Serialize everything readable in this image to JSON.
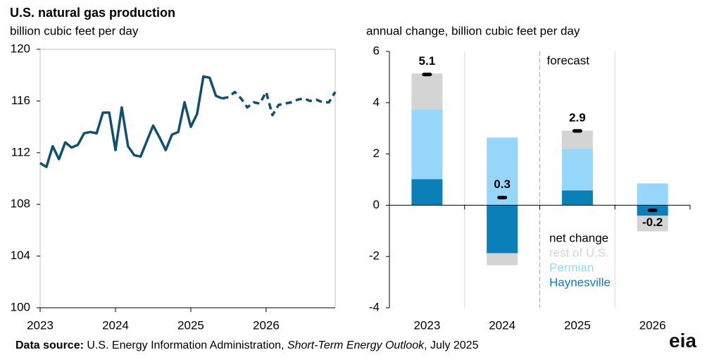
{
  "chart_data": [
    {
      "type": "line",
      "title": "U.S. natural gas production",
      "subtitle": "billion cubic feet per day",
      "categories": [
        "2023",
        null,
        null,
        null,
        null,
        null,
        null,
        null,
        null,
        null,
        null,
        null,
        "2024",
        null,
        null,
        null,
        null,
        null,
        null,
        null,
        null,
        null,
        null,
        null,
        "2025",
        null,
        null,
        null,
        null,
        null,
        null,
        null,
        null,
        null,
        null,
        null,
        "2026",
        null,
        null,
        null,
        null,
        null,
        null,
        null,
        null,
        null,
        null,
        null
      ],
      "series": [
        {
          "color": "#10506e",
          "dashed": false,
          "values": [
            111.2,
            110.9,
            112.5,
            111.5,
            112.8,
            112.4,
            112.6,
            113.5,
            113.6,
            113.5,
            115.1,
            115.1,
            112.2,
            115.5,
            112.5,
            111.8,
            111.7,
            112.9,
            114.1,
            113.2,
            112.2,
            113.4,
            113.6,
            115.9,
            114.0,
            115.0,
            117.9,
            117.8,
            116.4,
            116.2,
            null,
            null,
            null,
            null,
            null,
            null,
            null,
            null,
            null,
            null,
            null,
            null,
            null,
            null,
            null,
            null,
            null,
            null
          ]
        },
        {
          "color": "#10506e",
          "dashed": true,
          "values": [
            null,
            null,
            null,
            null,
            null,
            null,
            null,
            null,
            null,
            null,
            null,
            null,
            null,
            null,
            null,
            null,
            null,
            null,
            null,
            null,
            null,
            null,
            null,
            null,
            null,
            null,
            null,
            null,
            null,
            116.2,
            116.3,
            116.7,
            116.2,
            115.5,
            115.9,
            115.8,
            116.7,
            114.9,
            115.7,
            115.8,
            115.9,
            116.1,
            116.2,
            116.0,
            116.1,
            115.9,
            115.9,
            116.7
          ]
        }
      ],
      "ylim": [
        100,
        120
      ],
      "yticks": [
        100,
        104,
        108,
        112,
        116,
        120
      ],
      "grid": false
    },
    {
      "type": "stacked-bar",
      "subtitle": "annual change, billion cubic feet per day",
      "categories": [
        "2023",
        "2024",
        "2025",
        "2026"
      ],
      "series": [
        {
          "name": "Haynesville",
          "color": "#0a7fb8",
          "values": [
            1.02,
            -1.87,
            0.58,
            -0.41
          ]
        },
        {
          "name": "Permian",
          "color": "#96d7f9",
          "values": [
            2.72,
            2.64,
            1.62,
            0.85
          ]
        },
        {
          "name": "rest of U.S.",
          "color": "#d4d4d4",
          "values": [
            1.4,
            -0.47,
            0.71,
            -0.61
          ]
        }
      ],
      "net": {
        "name": "net change",
        "color": "#000000",
        "values": [
          5.1,
          0.3,
          2.9,
          -0.2
        ]
      },
      "annotation": "forecast",
      "ylim": [
        -4,
        6
      ],
      "yticks": [
        -4,
        -2,
        0,
        2,
        4,
        6
      ],
      "grid": false
    }
  ],
  "footer": {
    "label": "Data source:",
    "text1": " U.S. Energy Information Administration, ",
    "italic": "Short-Term Energy Outlook",
    "text2": ", July 2025"
  },
  "logo": "eia"
}
